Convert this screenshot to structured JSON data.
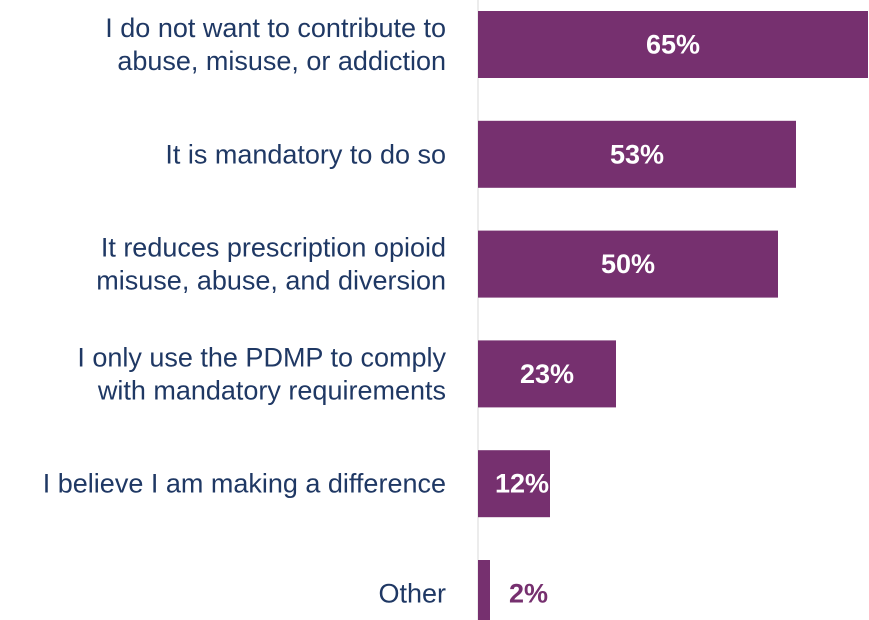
{
  "chart_data": {
    "type": "bar",
    "orientation": "horizontal",
    "categories": [
      [
        "I do not want to contribute to",
        "abuse, misuse, or addiction"
      ],
      [
        "It is mandatory to do so"
      ],
      [
        "It reduces prescription opioid",
        "misuse, abuse, and diversion"
      ],
      [
        "I only use the PDMP to comply",
        "with mandatory requirements"
      ],
      [
        "I believe I am making a difference"
      ],
      [
        "Other"
      ]
    ],
    "values": [
      65,
      53,
      50,
      23,
      12,
      2
    ],
    "value_labels": [
      "65%",
      "53%",
      "50%",
      "23%",
      "12%",
      "2%"
    ],
    "unit": "%",
    "xlim": [
      0,
      65
    ],
    "legend": "none",
    "grid": false,
    "colors": {
      "bar": "#76306f",
      "label_inside": "#ffffff",
      "label_outside": "#76306f",
      "category_text": "#1f3864",
      "axis_line": "#d9d9d9"
    }
  }
}
